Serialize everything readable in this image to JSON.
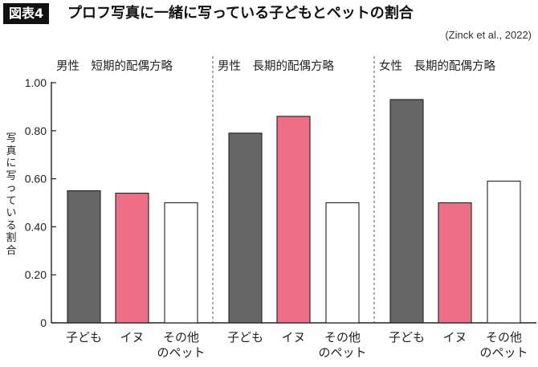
{
  "header": {
    "figure_label": "図表4",
    "title": "プロフ写真に一緒に写っている子どもとペットの割合",
    "source": "(Zinck et al., 2022)"
  },
  "chart_data": {
    "type": "bar",
    "ylabel": "写真に写っている割合",
    "ylim": [
      0,
      1.0
    ],
    "yticks": [
      "0",
      "0.20",
      "0.40",
      "0.60",
      "0.80",
      "1.00"
    ],
    "grid": false,
    "groups": [
      {
        "label": "男性　短期的配偶方略",
        "categories": [
          "子ども",
          "イヌ",
          "その他のペット"
        ],
        "values": [
          0.55,
          0.54,
          0.5
        ]
      },
      {
        "label": "男性　長期的配偶方略",
        "categories": [
          "子ども",
          "イヌ",
          "その他のペット"
        ],
        "values": [
          0.79,
          0.86,
          0.5
        ]
      },
      {
        "label": "女性　長期的配偶方略",
        "categories": [
          "子ども",
          "イヌ",
          "その他のペット"
        ],
        "values": [
          0.93,
          0.5,
          0.59
        ]
      }
    ],
    "category_colors": {
      "子ども": "#666666",
      "イヌ": "#ee6e85",
      "その他のペット": "#ffffff"
    },
    "category_display": {
      "その他のペット": [
        "その他",
        "のペット"
      ]
    }
  }
}
